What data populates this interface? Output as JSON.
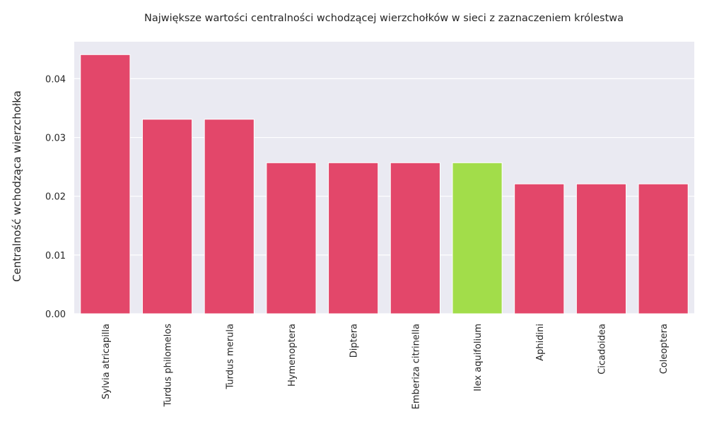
{
  "chart_data": {
    "type": "bar",
    "title": "Największe wartości centralności wchodzącej wierzchołków w sieci z zaznaczeniem królestwa",
    "xlabel": "",
    "ylabel": "Centralność wchodząca wierzchołka",
    "categories": [
      "Sylvia atricapilla",
      "Turdus philomelos",
      "Turdus merula",
      "Hymenoptera",
      "Diptera",
      "Emberiza citrinella",
      "Ilex aquifolium",
      "Aphidini",
      "Cicadoidea",
      "Coleoptera"
    ],
    "values": [
      0.0441,
      0.0331,
      0.0331,
      0.0257,
      0.0257,
      0.0257,
      0.0257,
      0.0221,
      0.0221,
      0.0221
    ],
    "bar_colors": [
      "#e3476a",
      "#e3476a",
      "#e3476a",
      "#e3476a",
      "#e3476a",
      "#e3476a",
      "#a2dd4a",
      "#e3476a",
      "#e3476a",
      "#e3476a"
    ],
    "ylim": [
      0,
      0.0463
    ],
    "yticks": [
      "0.00",
      "0.01",
      "0.02",
      "0.03",
      "0.04"
    ],
    "ytick_values": [
      0,
      0.01,
      0.02,
      0.03,
      0.04
    ],
    "grid": true,
    "background_color": "#eaeaf2",
    "grid_color": "#ffffff"
  }
}
